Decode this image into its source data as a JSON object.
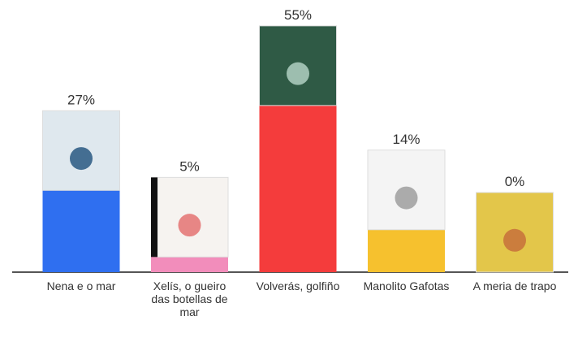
{
  "chart_data": {
    "type": "bar",
    "categories": [
      "Nena e o mar",
      "Xelís, o gueiro das botellas de mar",
      "Volverás, golfiño",
      "Manolito Gafotas",
      "A meria de trapo"
    ],
    "series": [
      {
        "name": null,
        "values": [
          27,
          5,
          55,
          14,
          0
        ],
        "value_labels": [
          "27%",
          "5%",
          "55%",
          "14%",
          "0%"
        ],
        "colors": [
          "#2f6ff0",
          "#f28dbb",
          "#f43c3c",
          "#f6c12e",
          "#9a9a9a"
        ]
      }
    ]
  }
}
